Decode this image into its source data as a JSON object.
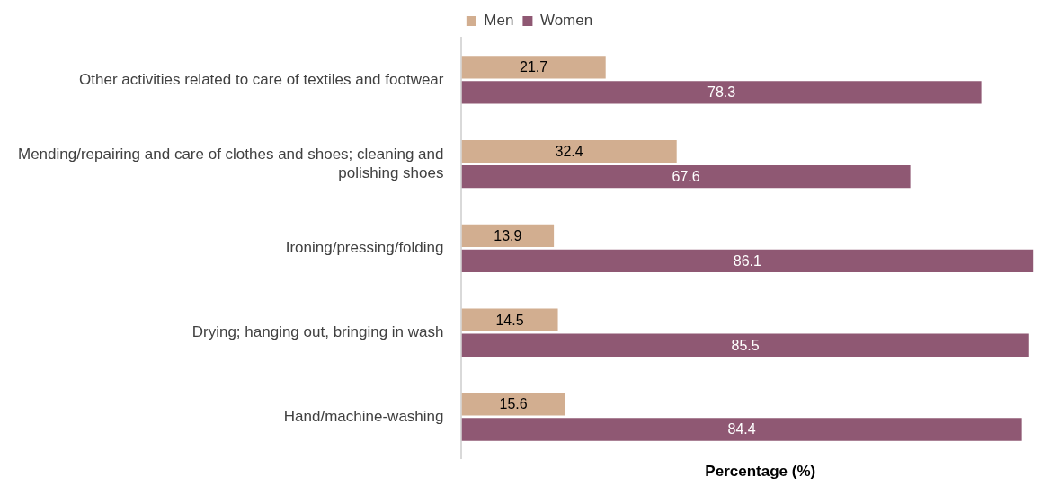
{
  "chart_data": {
    "type": "bar",
    "orientation": "horizontal",
    "xlabel": "Percentage (%)",
    "categories": [
      "Other activities related to care of textiles and footwear",
      "Mending/repairing and care of clothes and shoes; cleaning and polishing shoes",
      "Ironing/pressing/folding",
      "Drying; hanging out, bringing in wash",
      "Hand/machine-washing"
    ],
    "series": [
      {
        "name": "Men",
        "color": "#d2ae90",
        "values": [
          21.7,
          32.4,
          13.9,
          14.5,
          15.6
        ]
      },
      {
        "name": "Women",
        "color": "#8f5873",
        "values": [
          78.3,
          67.6,
          86.1,
          85.5,
          84.4
        ]
      }
    ],
    "data_labels": true,
    "legend": "top",
    "grid": false,
    "tick_labels": "y"
  }
}
